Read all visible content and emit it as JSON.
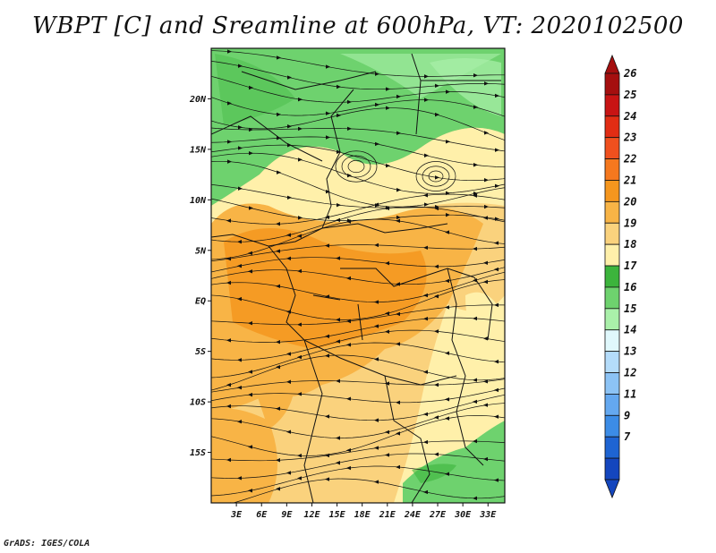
{
  "title": "WBPT [C] and Sreamline at 600hPa, VT: 2020102500",
  "footer": "GrADS: IGES/COLA",
  "map": {
    "lat_labels": [
      "20N",
      "15N",
      "10N",
      "5N",
      "EQ",
      "5S",
      "10S",
      "15S"
    ],
    "lat_values": [
      20,
      15,
      10,
      5,
      0,
      -5,
      -10,
      -15
    ],
    "lon_labels": [
      "3E",
      "6E",
      "9E",
      "12E",
      "15E",
      "18E",
      "21E",
      "24E",
      "27E",
      "30E",
      "33E"
    ],
    "lon_values": [
      3,
      6,
      9,
      12,
      15,
      18,
      21,
      24,
      27,
      30,
      33
    ],
    "lat_range": [
      -20,
      25
    ],
    "lon_range": [
      0,
      35
    ]
  },
  "colorbar": {
    "labels": [
      "26",
      "25",
      "24",
      "23",
      "22",
      "21",
      "20",
      "19",
      "18",
      "17",
      "16",
      "15",
      "14",
      "13",
      "12",
      "11",
      "9",
      "7"
    ],
    "colors": [
      "#a50f0f",
      "#c81414",
      "#e12d14",
      "#f0501e",
      "#f5781e",
      "#f5961e",
      "#f8b446",
      "#fad27d",
      "#fff0aa",
      "#3cb43c",
      "#6ed26e",
      "#aaf0aa",
      "#e0f8fc",
      "#b4dcfa",
      "#8cc3f5",
      "#64a8f0",
      "#3c8ce6",
      "#1e64d2",
      "#1446be"
    ]
  }
}
